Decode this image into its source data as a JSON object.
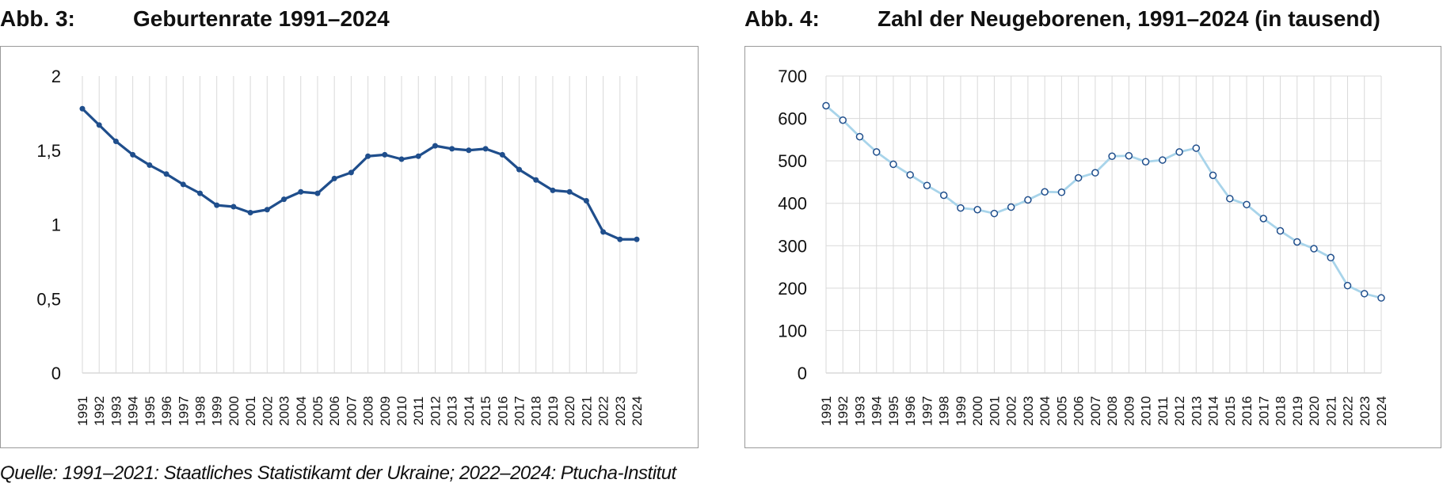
{
  "figures": [
    {
      "label": "Abb. 3:",
      "title": "Geburtenrate 1991–2024"
    },
    {
      "label": "Abb. 4:",
      "title": "Zahl der Neugeborenen, 1991–2024 (in tausend)"
    }
  ],
  "source": "Quelle: 1991–2021: Staatliches Statistikamt der Ukraine; 2022–2024: Ptucha-Institut",
  "colors": {
    "series1": "#1f4e8c",
    "series2": "#a8d4ea",
    "marker2_stroke": "#1f4e8c",
    "grid": "#d9d9d9"
  },
  "chart_data": [
    {
      "type": "line",
      "title": "Geburtenrate 1991–2024",
      "x": [
        "1991",
        "1992",
        "1993",
        "1994",
        "1995",
        "1996",
        "1997",
        "1998",
        "1999",
        "2000",
        "2001",
        "2002",
        "2003",
        "2004",
        "2005",
        "2006",
        "2007",
        "2008",
        "2009",
        "2010",
        "2011",
        "2012",
        "2013",
        "2014",
        "2015",
        "2016",
        "2017",
        "2018",
        "2019",
        "2020",
        "2021",
        "2022",
        "2023",
        "2024"
      ],
      "series": [
        {
          "values": [
            1.78,
            1.67,
            1.56,
            1.47,
            1.4,
            1.34,
            1.27,
            1.21,
            1.13,
            1.12,
            1.08,
            1.1,
            1.17,
            1.22,
            1.21,
            1.31,
            1.35,
            1.46,
            1.47,
            1.44,
            1.46,
            1.53,
            1.51,
            1.5,
            1.51,
            1.47,
            1.37,
            1.3,
            1.23,
            1.22,
            1.16,
            0.95,
            0.9,
            0.9
          ]
        }
      ],
      "ylim": [
        0,
        2
      ],
      "yticks": [
        "0",
        "0,5",
        "1",
        "1,5",
        "2"
      ],
      "ytick_values": [
        0,
        0.5,
        1,
        1.5,
        2
      ],
      "grid": "vertical",
      "markers": "filled"
    },
    {
      "type": "line",
      "title": "Zahl der Neugeborenen, 1991–2024 (in tausend)",
      "x": [
        "1991",
        "1992",
        "1993",
        "1994",
        "1995",
        "1996",
        "1997",
        "1998",
        "1999",
        "2000",
        "2001",
        "2002",
        "2003",
        "2004",
        "2005",
        "2006",
        "2007",
        "2008",
        "2009",
        "2010",
        "2011",
        "2012",
        "2013",
        "2014",
        "2015",
        "2016",
        "2017",
        "2018",
        "2019",
        "2020",
        "2021",
        "2022",
        "2023",
        "2024"
      ],
      "series": [
        {
          "values": [
            630,
            596,
            557,
            521,
            492,
            467,
            442,
            419,
            389,
            385,
            376,
            391,
            408,
            427,
            426,
            460,
            472,
            511,
            512,
            498,
            502,
            521,
            530,
            466,
            411,
            397,
            364,
            335,
            309,
            293,
            272,
            206,
            187,
            177
          ]
        }
      ],
      "ylim": [
        0,
        700
      ],
      "yticks": [
        "0",
        "100",
        "200",
        "300",
        "400",
        "500",
        "600",
        "700"
      ],
      "ytick_values": [
        0,
        100,
        200,
        300,
        400,
        500,
        600,
        700
      ],
      "grid": "both",
      "markers": "hollow"
    }
  ]
}
